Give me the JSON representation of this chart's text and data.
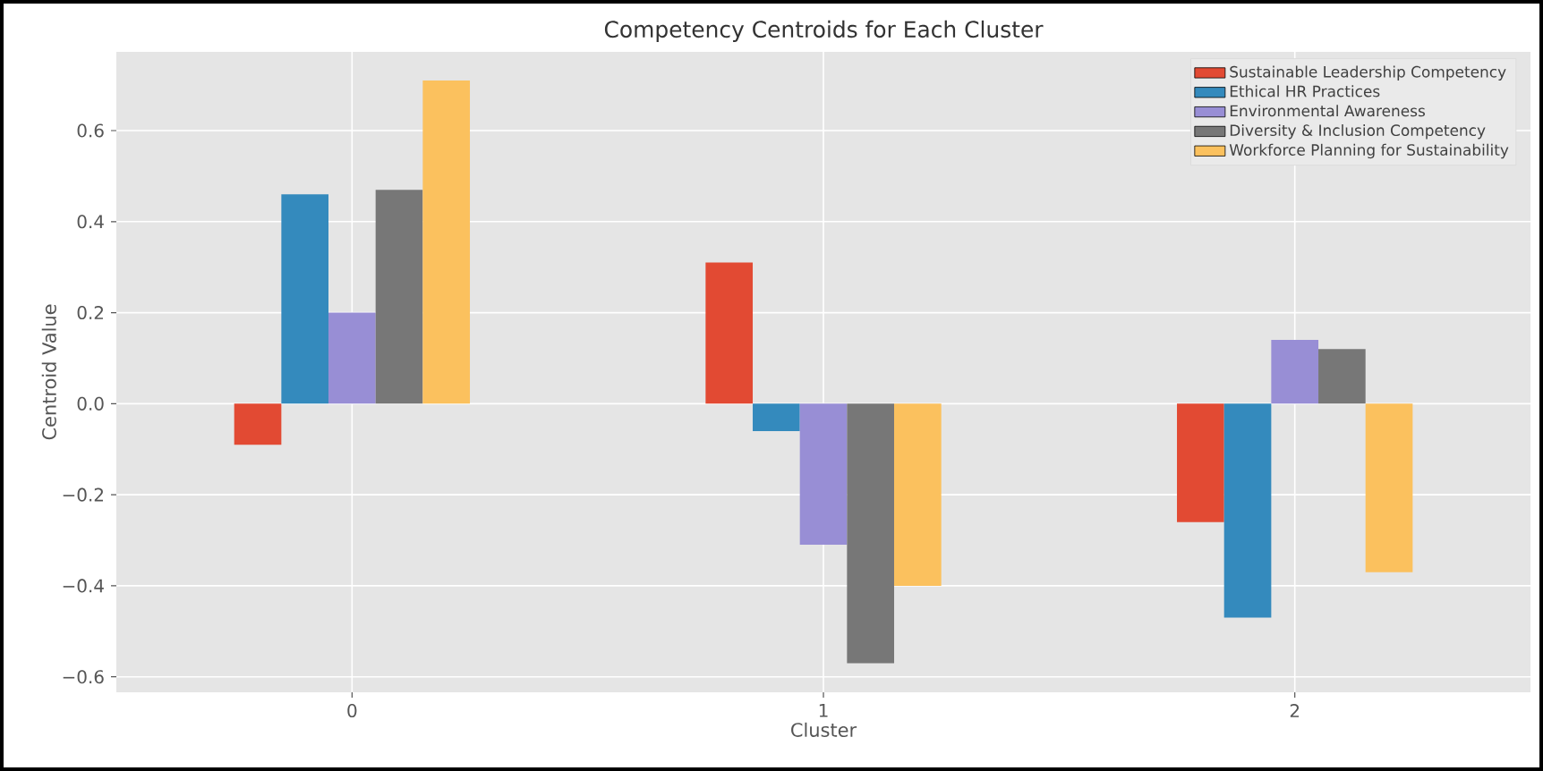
{
  "chart_data": {
    "type": "bar",
    "title": "Competency Centroids for Each Cluster",
    "xlabel": "Cluster",
    "ylabel": "Centroid Value",
    "categories": [
      "0",
      "1",
      "2"
    ],
    "series": [
      {
        "name": "Sustainable Leadership Competency",
        "color": "#e24a33",
        "values": [
          -0.09,
          0.31,
          -0.26
        ]
      },
      {
        "name": "Ethical HR Practices",
        "color": "#348abd",
        "values": [
          0.46,
          -0.06,
          -0.47
        ]
      },
      {
        "name": "Environmental Awareness",
        "color": "#988ed5",
        "values": [
          0.2,
          -0.31,
          0.14
        ]
      },
      {
        "name": "Diversity & Inclusion Competency",
        "color": "#777777",
        "values": [
          0.47,
          -0.57,
          0.12
        ]
      },
      {
        "name": "Workforce Planning for Sustainability",
        "color": "#fbc15e",
        "values": [
          0.71,
          -0.4,
          -0.37
        ]
      }
    ],
    "ylim": [
      -0.634,
      0.773
    ],
    "yticks": [
      {
        "value": -0.6,
        "label": "−0.6"
      },
      {
        "value": -0.4,
        "label": "−0.4"
      },
      {
        "value": -0.2,
        "label": "−0.2"
      },
      {
        "value": 0,
        "label": "0.0"
      },
      {
        "value": 0.2,
        "label": "0.2"
      },
      {
        "value": 0.4,
        "label": "0.4"
      },
      {
        "value": 0.6,
        "label": "0.6"
      }
    ],
    "grid": true,
    "legend": "top right"
  }
}
